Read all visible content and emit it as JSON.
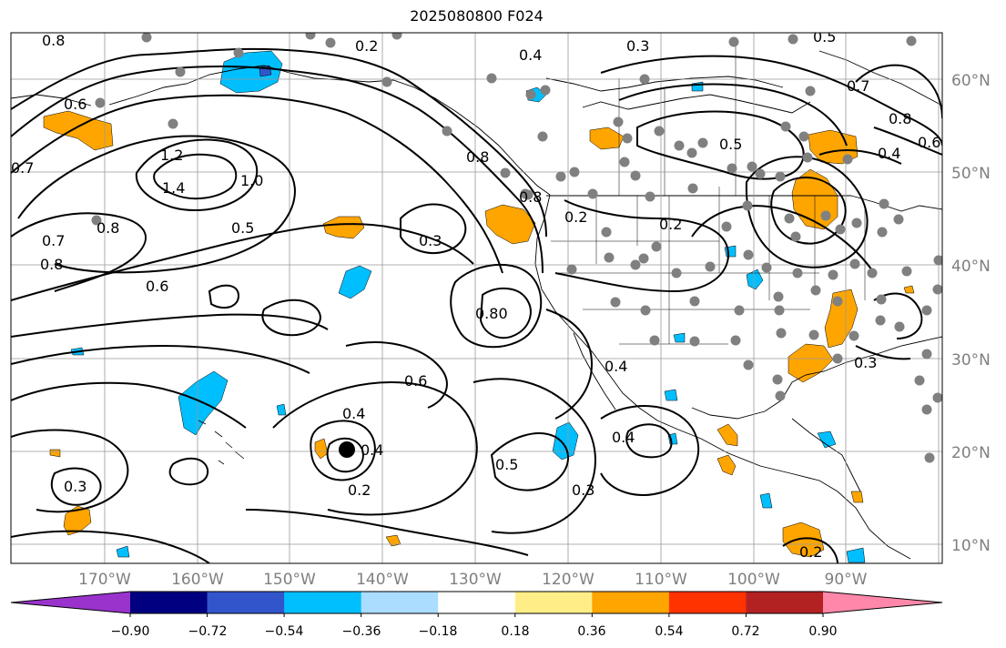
{
  "title": "2025080800 F024",
  "map": {
    "lat_labels": [
      "60°N",
      "50°N",
      "40°N",
      "30°N",
      "20°N",
      "10°N"
    ],
    "lon_labels": [
      "170°W",
      "160°W",
      "150°W",
      "140°W",
      "130°W",
      "120°W",
      "110°W",
      "100°W",
      "90°W"
    ],
    "contour_labels": [
      "0.8",
      "0.2",
      "0.4",
      "0.3",
      "0.5",
      "0.7",
      "0.8",
      "0.6",
      "1.2",
      "1.4",
      "1.0",
      "0.5",
      "0.6",
      "0.7",
      "0.8",
      "0.8",
      "0.3",
      "0.8",
      "0.2",
      "0.2",
      "0.5",
      "0.4",
      "0.8",
      "0.80",
      "0.6",
      "0.4",
      "0.4",
      "0.4",
      "0.2",
      "0.5",
      "0.3",
      "0.4",
      "0.3",
      "0.3",
      "0.2",
      "0.6",
      "0.7"
    ],
    "marker": {
      "lon": -144.0,
      "lat": 20.0
    }
  },
  "colorbar": {
    "tick_labels": [
      "−0.90",
      "−0.72",
      "−0.54",
      "−0.36",
      "−0.18",
      "0.18",
      "0.36",
      "0.54",
      "0.72",
      "0.90"
    ],
    "colors": [
      "#9933cc",
      "#000080",
      "#3355cc",
      "#00bfff",
      "#aaddff",
      "#ffffff",
      "#ffee88",
      "#ffa500",
      "#ff3300",
      "#b22222",
      "#ff88aa"
    ]
  },
  "style": {
    "warm_fill": "#ffa500",
    "cool_fill": "#00bfff",
    "cool_deep_fill": "#3355cc",
    "station_color": "#808080",
    "grid_color": "#999999"
  }
}
